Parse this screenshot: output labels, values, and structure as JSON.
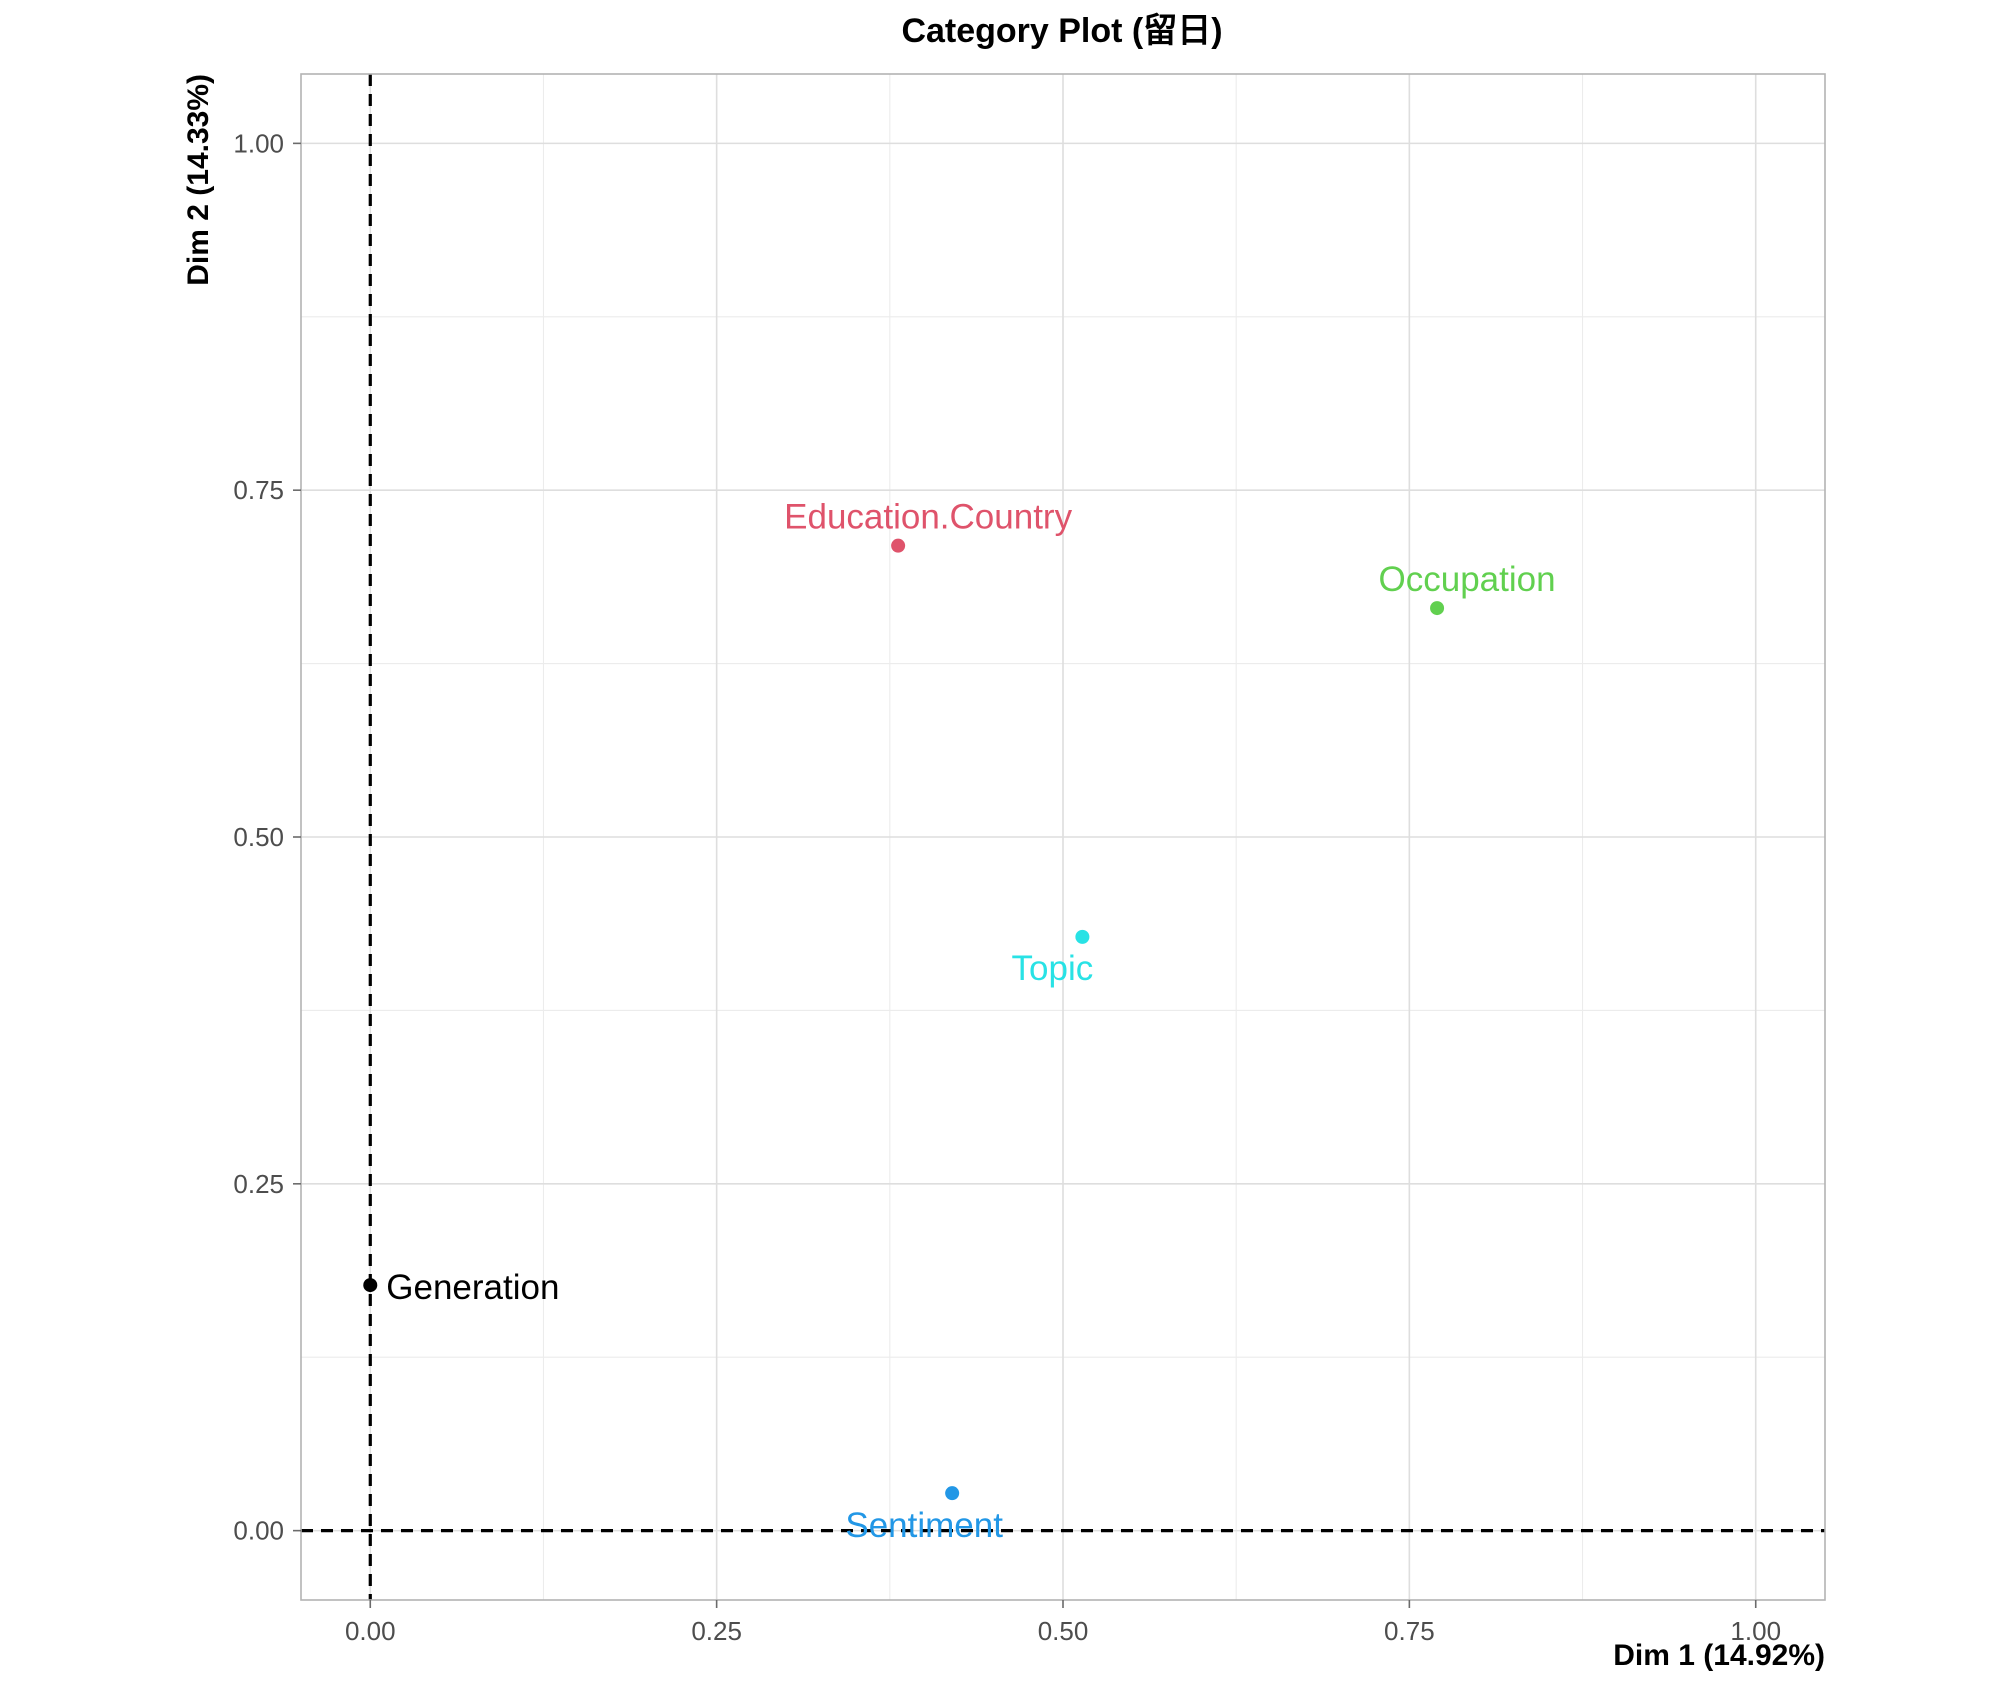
{
  "chart_data": {
    "type": "scatter",
    "title": "Category Plot (留日)",
    "xlabel": "Dim 1 (14.92%)",
    "ylabel": "Dim 2 (14.33%)",
    "xlim": [
      -0.05,
      1.05
    ],
    "ylim": [
      -0.05,
      1.05
    ],
    "x_ticks": [
      0.0,
      0.25,
      0.5,
      0.75,
      1.0
    ],
    "y_ticks": [
      0.0,
      0.25,
      0.5,
      0.75,
      1.0
    ],
    "x_tick_labels": [
      "0.00",
      "0.25",
      "0.50",
      "0.75",
      "1.00"
    ],
    "y_tick_labels": [
      "0.00",
      "0.25",
      "0.50",
      "0.75",
      "1.00"
    ],
    "grid": true,
    "reference_lines": {
      "x": 0,
      "y": 0,
      "style": "dashed"
    },
    "points": [
      {
        "label": "Education.Country",
        "x": 0.381,
        "y": 0.71,
        "color": "#df536b",
        "label_position": "top"
      },
      {
        "label": "Occupation",
        "x": 0.77,
        "y": 0.665,
        "color": "#61d04f",
        "label_position": "top"
      },
      {
        "label": "Topic",
        "x": 0.514,
        "y": 0.428,
        "color": "#28e2e5",
        "label_position": "bottom"
      },
      {
        "label": "Generation",
        "x": 0.0,
        "y": 0.177,
        "color": "#000000",
        "label_position": "right"
      },
      {
        "label": "Sentiment",
        "x": 0.42,
        "y": 0.027,
        "color": "#2297e6",
        "label_position": "bottom-left"
      }
    ]
  }
}
